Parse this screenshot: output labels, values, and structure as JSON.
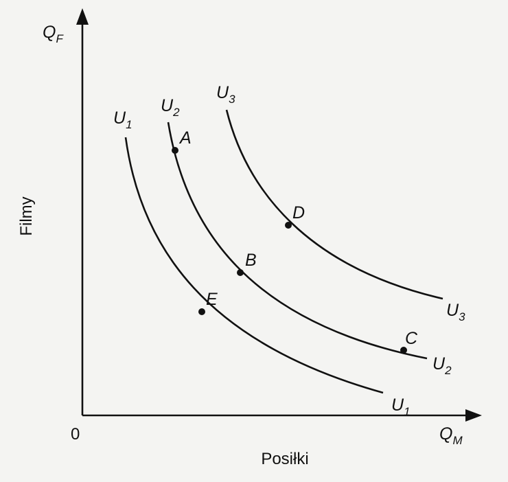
{
  "axes": {
    "y": {
      "symbol": "Q",
      "sub": "F",
      "name": "Filmy"
    },
    "x": {
      "symbol": "Q",
      "sub": "M",
      "name": "Posiłki"
    },
    "origin": "0"
  },
  "curves": [
    {
      "symbol": "U",
      "sub": "1"
    },
    {
      "symbol": "U",
      "sub": "2"
    },
    {
      "symbol": "U",
      "sub": "3"
    }
  ],
  "points": [
    "A",
    "B",
    "C",
    "D",
    "E"
  ]
}
